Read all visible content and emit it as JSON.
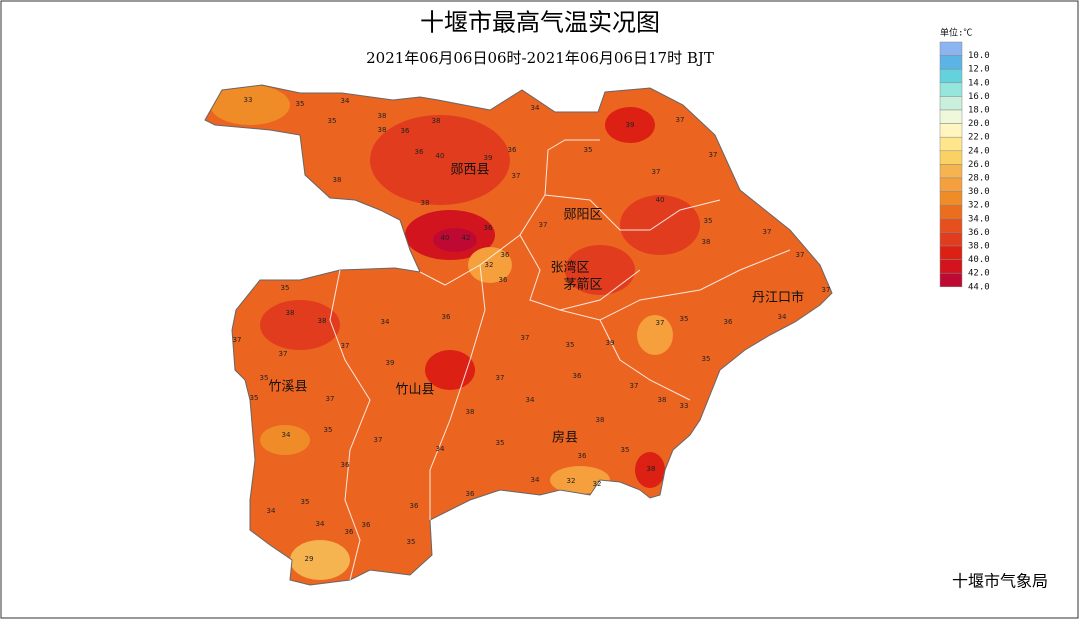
{
  "title": "十堰市最高气温实况图",
  "subtitle": "2021年06月06日06时-2021年06月06日17时  BJT",
  "legend": {
    "unit": "单位:℃",
    "items": [
      {
        "value": 10,
        "label": "10.0",
        "color": "#8cb4f0"
      },
      {
        "value": 12,
        "label": "12.0",
        "color": "#5ab4e6"
      },
      {
        "value": 14,
        "label": "14.0",
        "color": "#64d2dc"
      },
      {
        "value": 16,
        "label": "16.0",
        "color": "#96e6dc"
      },
      {
        "value": 18,
        "label": "18.0",
        "color": "#c8f0dc"
      },
      {
        "value": 20,
        "label": "20.0",
        "color": "#f0f8dc"
      },
      {
        "value": 22,
        "label": "22.0",
        "color": "#fff5c0"
      },
      {
        "value": 24,
        "label": "24.0",
        "color": "#ffe68c"
      },
      {
        "value": 26,
        "label": "26.0",
        "color": "#fad264"
      },
      {
        "value": 28,
        "label": "28.0",
        "color": "#f5b450"
      },
      {
        "value": 30,
        "label": "30.0",
        "color": "#f5a03c"
      },
      {
        "value": 32,
        "label": "32.0",
        "color": "#f08c28"
      },
      {
        "value": 34,
        "label": "34.0",
        "color": "#eb6e1e"
      },
      {
        "value": 36,
        "label": "36.0",
        "color": "#e6501e"
      },
      {
        "value": 38,
        "label": "38.0",
        "color": "#e13c1e"
      },
      {
        "value": 40,
        "label": "40.0",
        "color": "#dc2014"
      },
      {
        "value": 42,
        "label": "42.0",
        "color": "#d2141e"
      },
      {
        "value": 44,
        "label": "44.0",
        "color": "#be0a32"
      }
    ]
  },
  "districts": [
    "郧西县",
    "郧阳区",
    "张湾区",
    "茅箭区",
    "丹江口市",
    "竹溪县",
    "竹山县",
    "房县"
  ],
  "stations": [
    33,
    35,
    34,
    35,
    38,
    38,
    36,
    38,
    36,
    40,
    39,
    36,
    34,
    35,
    39,
    37,
    37,
    37,
    37,
    38,
    38,
    40,
    42,
    36,
    36,
    36,
    32,
    37,
    40,
    35,
    38,
    37,
    37,
    37,
    34,
    36,
    35,
    37,
    35,
    39,
    35,
    37,
    36,
    34,
    35,
    38,
    38,
    37,
    37,
    37,
    39,
    37,
    35,
    35,
    34,
    35,
    36,
    37,
    34,
    37,
    34,
    38,
    35,
    36,
    37,
    38,
    33,
    38,
    36,
    35,
    32,
    32,
    34,
    38,
    35,
    34,
    34,
    36,
    36,
    35,
    29,
    36,
    36
  ],
  "footer": "十堰市气象局"
}
